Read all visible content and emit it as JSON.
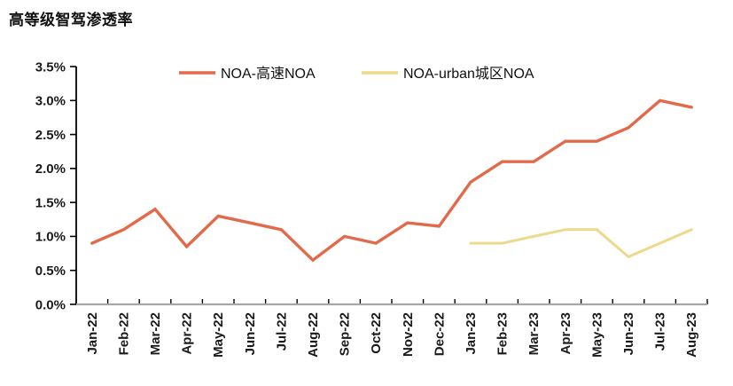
{
  "title": "高等级智驾渗透率",
  "chart_data": {
    "type": "line",
    "title": "高等级智驾渗透率",
    "categories": [
      "Jan-22",
      "Feb-22",
      "Mar-22",
      "Apr-22",
      "May-22",
      "Jun-22",
      "Jul-22",
      "Aug-22",
      "Sep-22",
      "Oct-22",
      "Nov-22",
      "Dec-22",
      "Jan-23",
      "Feb-23",
      "Mar-23",
      "Apr-23",
      "May-23",
      "Jun-23",
      "Jul-23",
      "Aug-23"
    ],
    "series": [
      {
        "name": "NOA-高速NOA",
        "color": "#E2694A",
        "values": [
          0.9,
          1.1,
          1.4,
          0.85,
          1.3,
          1.2,
          1.1,
          0.65,
          1.0,
          0.9,
          1.2,
          1.15,
          1.8,
          2.1,
          2.1,
          2.4,
          2.4,
          2.6,
          3.0,
          2.9
        ]
      },
      {
        "name": "NOA-urban城区NOA",
        "color": "#EDD98B",
        "values": [
          null,
          null,
          null,
          null,
          null,
          null,
          null,
          null,
          null,
          null,
          null,
          null,
          0.9,
          0.9,
          1.0,
          1.1,
          1.1,
          0.7,
          0.9,
          1.1
        ]
      }
    ],
    "ylim": [
      0,
      3.5
    ],
    "ytick_labels": [
      "0.0%",
      "0.5%",
      "1.0%",
      "1.5%",
      "2.0%",
      "2.5%",
      "3.0%",
      "3.5%"
    ],
    "xlabel": "",
    "ylabel": "",
    "grid": false,
    "legend_position": "top-center"
  },
  "colors": {
    "axis_label": "#1A1A1A",
    "left_axis": "#000000",
    "bottom_axis": "#A6A6A6",
    "tick": "#000000",
    "background": "#FFFFFF",
    "legend_text": "#111111"
  }
}
